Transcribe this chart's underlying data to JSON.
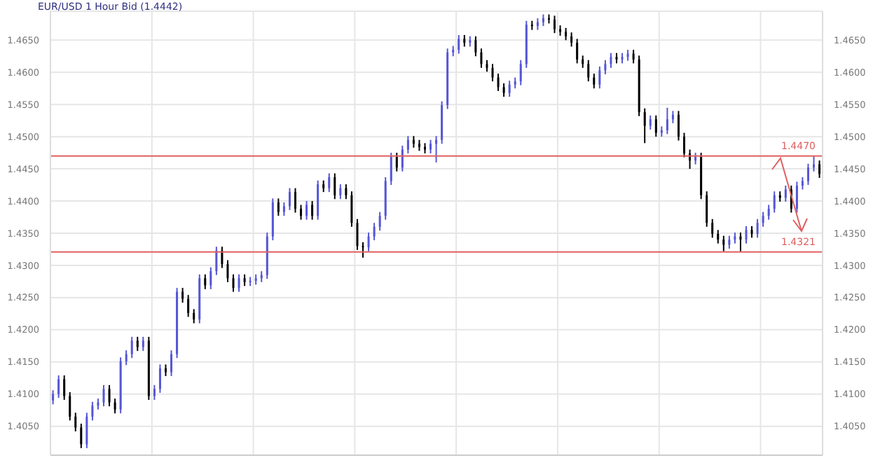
{
  "chart_data": {
    "type": "candlestick",
    "title": "EUR/USD 1 Hour Bid (1.4442)",
    "categories": [
      null,
      null,
      null,
      null,
      null,
      null,
      null,
      null,
      null,
      null,
      null,
      null,
      null,
      null,
      null,
      null,
      null,
      null,
      null,
      null,
      null,
      null,
      null,
      null,
      null,
      null,
      null,
      null,
      null,
      null,
      null,
      null,
      null,
      null,
      null,
      null,
      null,
      null,
      null,
      null,
      null,
      null,
      null,
      null,
      null,
      null,
      null,
      null,
      null,
      null,
      null,
      null,
      null,
      null,
      null,
      null,
      null,
      null,
      null,
      null,
      null,
      null,
      null,
      null,
      null,
      null,
      null,
      null,
      null,
      null,
      null,
      null,
      null,
      null,
      null,
      null,
      null,
      null,
      null,
      null,
      null,
      null,
      null,
      null,
      null,
      null,
      null,
      null,
      null,
      null,
      null,
      null,
      null,
      null,
      null,
      null,
      null,
      null,
      null,
      null,
      null,
      null,
      null,
      null,
      null,
      null,
      null,
      null,
      null,
      null,
      null,
      null,
      null,
      null,
      null,
      null,
      null,
      null,
      null,
      null,
      null,
      null,
      null,
      null,
      null,
      null,
      null,
      null,
      null,
      null,
      null,
      null,
      null,
      null,
      null,
      null,
      null
    ],
    "ohlc": [
      [
        1.409,
        1.4106,
        1.4084,
        1.41
      ],
      [
        1.41,
        1.4129,
        1.4094,
        1.4123
      ],
      [
        1.4123,
        1.4129,
        1.4091,
        1.4097
      ],
      [
        1.4097,
        1.4103,
        1.4059,
        1.4065
      ],
      [
        1.4065,
        1.4071,
        1.4042,
        1.4048
      ],
      [
        1.4048,
        1.4054,
        1.4016,
        1.4022
      ],
      [
        1.4022,
        1.4071,
        1.4016,
        1.4065
      ],
      [
        1.4065,
        1.4088,
        1.4059,
        1.4082
      ],
      [
        1.4082,
        1.4093,
        1.4076,
        1.4087
      ],
      [
        1.4087,
        1.4114,
        1.4081,
        1.4108
      ],
      [
        1.4108,
        1.4114,
        1.4081,
        1.4087
      ],
      [
        1.4087,
        1.4093,
        1.407,
        1.4076
      ],
      [
        1.4076,
        1.4157,
        1.407,
        1.4151
      ],
      [
        1.4151,
        1.4168,
        1.4145,
        1.4162
      ],
      [
        1.4162,
        1.4189,
        1.4156,
        1.4183
      ],
      [
        1.4183,
        1.4189,
        1.4167,
        1.4173
      ],
      [
        1.4173,
        1.4189,
        1.4167,
        1.4183
      ],
      [
        1.4183,
        1.4189,
        1.4091,
        1.4097
      ],
      [
        1.4097,
        1.4114,
        1.4091,
        1.4108
      ],
      [
        1.4108,
        1.4146,
        1.4102,
        1.414
      ],
      [
        1.414,
        1.4146,
        1.4128,
        1.4134
      ],
      [
        1.4134,
        1.4168,
        1.4128,
        1.4162
      ],
      [
        1.4162,
        1.4265,
        1.4156,
        1.4259
      ],
      [
        1.4259,
        1.4265,
        1.4242,
        1.4248
      ],
      [
        1.4248,
        1.4254,
        1.422,
        1.4226
      ],
      [
        1.4226,
        1.4232,
        1.421,
        1.4216
      ],
      [
        1.4216,
        1.4286,
        1.421,
        1.428
      ],
      [
        1.428,
        1.4286,
        1.4263,
        1.4269
      ],
      [
        1.4269,
        1.4297,
        1.4263,
        1.4291
      ],
      [
        1.4291,
        1.4329,
        1.4285,
        1.4323
      ],
      [
        1.4323,
        1.4329,
        1.4296,
        1.4302
      ],
      [
        1.4302,
        1.4308,
        1.4274,
        1.428
      ],
      [
        1.428,
        1.4286,
        1.4259,
        1.4265
      ],
      [
        1.4265,
        1.4286,
        1.4259,
        1.428
      ],
      [
        1.428,
        1.4286,
        1.4268,
        1.4274
      ],
      [
        1.4274,
        1.4282,
        1.4268,
        1.4276
      ],
      [
        1.4276,
        1.4286,
        1.427,
        1.428
      ],
      [
        1.428,
        1.4291,
        1.4274,
        1.4285
      ],
      [
        1.4285,
        1.4351,
        1.4279,
        1.4345
      ],
      [
        1.4345,
        1.4404,
        1.4339,
        1.4398
      ],
      [
        1.4398,
        1.4404,
        1.4377,
        1.4383
      ],
      [
        1.4383,
        1.4398,
        1.4377,
        1.4392
      ],
      [
        1.4392,
        1.442,
        1.4386,
        1.4414
      ],
      [
        1.4414,
        1.442,
        1.4382,
        1.4388
      ],
      [
        1.4388,
        1.4394,
        1.4371,
        1.4377
      ],
      [
        1.4377,
        1.44,
        1.4371,
        1.4394
      ],
      [
        1.4394,
        1.44,
        1.4371,
        1.4377
      ],
      [
        1.4377,
        1.4432,
        1.4371,
        1.4426
      ],
      [
        1.4426,
        1.4432,
        1.4414,
        1.442
      ],
      [
        1.442,
        1.4443,
        1.4414,
        1.4437
      ],
      [
        1.4437,
        1.4443,
        1.4403,
        1.4409
      ],
      [
        1.4409,
        1.4426,
        1.4403,
        1.442
      ],
      [
        1.442,
        1.4426,
        1.4403,
        1.4409
      ],
      [
        1.4409,
        1.4415,
        1.436,
        1.4366
      ],
      [
        1.4366,
        1.4372,
        1.4324,
        1.433
      ],
      [
        1.433,
        1.4336,
        1.4312,
        1.4328
      ],
      [
        1.4328,
        1.4351,
        1.4322,
        1.4345
      ],
      [
        1.4345,
        1.4366,
        1.4339,
        1.436
      ],
      [
        1.436,
        1.4383,
        1.4354,
        1.4377
      ],
      [
        1.4377,
        1.4437,
        1.4371,
        1.4431
      ],
      [
        1.4431,
        1.4475,
        1.4425,
        1.4469
      ],
      [
        1.4469,
        1.4475,
        1.4446,
        1.4452
      ],
      [
        1.4452,
        1.4486,
        1.4446,
        1.448
      ],
      [
        1.448,
        1.4501,
        1.4474,
        1.4495
      ],
      [
        1.4495,
        1.4501,
        1.4483,
        1.4489
      ],
      [
        1.4489,
        1.4495,
        1.4478,
        1.4484
      ],
      [
        1.4484,
        1.449,
        1.4474,
        1.448
      ],
      [
        1.448,
        1.4495,
        1.4474,
        1.4489
      ],
      [
        1.4489,
        1.4501,
        1.446,
        1.4495
      ],
      [
        1.4495,
        1.4555,
        1.4489,
        1.4549
      ],
      [
        1.4549,
        1.4637,
        1.4543,
        1.4631
      ],
      [
        1.4631,
        1.4641,
        1.4625,
        1.4635
      ],
      [
        1.4635,
        1.4658,
        1.4629,
        1.4652
      ],
      [
        1.4652,
        1.4658,
        1.464,
        1.4646
      ],
      [
        1.4646,
        1.4656,
        1.464,
        1.465
      ],
      [
        1.465,
        1.4656,
        1.4625,
        1.4631
      ],
      [
        1.4631,
        1.4637,
        1.4607,
        1.4613
      ],
      [
        1.4613,
        1.4619,
        1.4601,
        1.4607
      ],
      [
        1.4607,
        1.4613,
        1.4586,
        1.4592
      ],
      [
        1.4592,
        1.4598,
        1.4571,
        1.4577
      ],
      [
        1.4577,
        1.4583,
        1.4562,
        1.4568
      ],
      [
        1.4568,
        1.4587,
        1.4562,
        1.4581
      ],
      [
        1.4581,
        1.4592,
        1.4575,
        1.4586
      ],
      [
        1.4586,
        1.4619,
        1.458,
        1.4613
      ],
      [
        1.4613,
        1.468,
        1.4607,
        1.4674
      ],
      [
        1.4674,
        1.468,
        1.4666,
        1.4672
      ],
      [
        1.4672,
        1.4684,
        1.4666,
        1.4678
      ],
      [
        1.4678,
        1.469,
        1.4672,
        1.4684
      ],
      [
        1.4684,
        1.469,
        1.4676,
        1.4682
      ],
      [
        1.4682,
        1.4688,
        1.4661,
        1.4667
      ],
      [
        1.4667,
        1.4673,
        1.4657,
        1.4663
      ],
      [
        1.4663,
        1.4669,
        1.465,
        1.4656
      ],
      [
        1.4656,
        1.4662,
        1.464,
        1.4646
      ],
      [
        1.4646,
        1.4652,
        1.4614,
        1.462
      ],
      [
        1.462,
        1.4626,
        1.4607,
        1.4613
      ],
      [
        1.4613,
        1.4619,
        1.4586,
        1.4592
      ],
      [
        1.4592,
        1.4598,
        1.4575,
        1.4581
      ],
      [
        1.4581,
        1.4609,
        1.4575,
        1.4603
      ],
      [
        1.4603,
        1.4619,
        1.4597,
        1.4613
      ],
      [
        1.4613,
        1.463,
        1.4607,
        1.4624
      ],
      [
        1.4624,
        1.463,
        1.4614,
        1.462
      ],
      [
        1.462,
        1.463,
        1.4614,
        1.4624
      ],
      [
        1.4624,
        1.4635,
        1.4618,
        1.4629
      ],
      [
        1.4629,
        1.4635,
        1.4614,
        1.462
      ],
      [
        1.462,
        1.4626,
        1.4532,
        1.4538
      ],
      [
        1.4538,
        1.4544,
        1.449,
        1.4517
      ],
      [
        1.4517,
        1.4533,
        1.4511,
        1.4527
      ],
      [
        1.4527,
        1.4533,
        1.45,
        1.4506
      ],
      [
        1.4506,
        1.4516,
        1.45,
        1.451
      ],
      [
        1.451,
        1.4545,
        1.4504,
        1.4527
      ],
      [
        1.4527,
        1.454,
        1.4521,
        1.4534
      ],
      [
        1.4534,
        1.454,
        1.4494,
        1.45
      ],
      [
        1.45,
        1.4506,
        1.4468,
        1.4474
      ],
      [
        1.4474,
        1.448,
        1.445,
        1.4463
      ],
      [
        1.4463,
        1.4475,
        1.4457,
        1.4469
      ],
      [
        1.4469,
        1.4475,
        1.4403,
        1.4409
      ],
      [
        1.4409,
        1.4415,
        1.436,
        1.4366
      ],
      [
        1.4366,
        1.4372,
        1.4343,
        1.4349
      ],
      [
        1.4349,
        1.4355,
        1.4334,
        1.434
      ],
      [
        1.434,
        1.4346,
        1.4322,
        1.4332
      ],
      [
        1.4332,
        1.4346,
        1.4326,
        1.434
      ],
      [
        1.434,
        1.4351,
        1.4334,
        1.4345
      ],
      [
        1.4345,
        1.4351,
        1.4322,
        1.434
      ],
      [
        1.434,
        1.4361,
        1.4334,
        1.4355
      ],
      [
        1.4355,
        1.4361,
        1.4343,
        1.4349
      ],
      [
        1.4349,
        1.4372,
        1.4343,
        1.4366
      ],
      [
        1.4366,
        1.4383,
        1.436,
        1.4377
      ],
      [
        1.4377,
        1.4394,
        1.4371,
        1.4388
      ],
      [
        1.4388,
        1.4415,
        1.4382,
        1.4409
      ],
      [
        1.4409,
        1.4415,
        1.4399,
        1.4405
      ],
      [
        1.4405,
        1.4424,
        1.4399,
        1.4418
      ],
      [
        1.4418,
        1.4424,
        1.4382,
        1.4388
      ],
      [
        1.4388,
        1.443,
        1.4382,
        1.4424
      ],
      [
        1.4424,
        1.4437,
        1.4418,
        1.4431
      ],
      [
        1.4431,
        1.4458,
        1.4425,
        1.4452
      ],
      [
        1.4452,
        1.447,
        1.4446,
        1.4457
      ],
      [
        1.4457,
        1.4463,
        1.4436,
        1.4442
      ]
    ],
    "colors": [
      "#5656d6",
      "#5656d6",
      "#000000",
      "#000000",
      "#000000",
      "#000000",
      "#5656d6",
      "#5656d6",
      "#5656d6",
      "#5656d6",
      "#000000",
      "#000000",
      "#5656d6",
      "#5656d6",
      "#5656d6",
      "#000000",
      "#5656d6",
      "#000000",
      "#5656d6",
      "#5656d6",
      "#000000",
      "#5656d6",
      "#5656d6",
      "#000000",
      "#000000",
      "#000000",
      "#5656d6",
      "#000000",
      "#5656d6",
      "#5656d6",
      "#000000",
      "#000000",
      "#000000",
      "#5656d6",
      "#000000",
      "#5656d6",
      "#5656d6",
      "#5656d6",
      "#5656d6",
      "#5656d6",
      "#000000",
      "#5656d6",
      "#5656d6",
      "#000000",
      "#000000",
      "#5656d6",
      "#000000",
      "#5656d6",
      "#000000",
      "#5656d6",
      "#000000",
      "#5656d6",
      "#000000",
      "#000000",
      "#000000",
      "#000000",
      "#5656d6",
      "#5656d6",
      "#5656d6",
      "#5656d6",
      "#5656d6",
      "#000000",
      "#5656d6",
      "#5656d6",
      "#000000",
      "#000000",
      "#000000",
      "#5656d6",
      "#5656d6",
      "#5656d6",
      "#5656d6",
      "#5656d6",
      "#5656d6",
      "#000000",
      "#5656d6",
      "#000000",
      "#000000",
      "#000000",
      "#000000",
      "#000000",
      "#000000",
      "#5656d6",
      "#5656d6",
      "#5656d6",
      "#5656d6",
      "#000000",
      "#5656d6",
      "#5656d6",
      "#000000",
      "#000000",
      "#000000",
      "#000000",
      "#000000",
      "#000000",
      "#000000",
      "#000000",
      "#000000",
      "#5656d6",
      "#5656d6",
      "#5656d6",
      "#000000",
      "#5656d6",
      "#5656d6",
      "#000000",
      "#000000",
      "#000000",
      "#5656d6",
      "#000000",
      "#5656d6",
      "#5656d6",
      "#5656d6",
      "#000000",
      "#000000",
      "#000000",
      "#5656d6",
      "#000000",
      "#000000",
      "#000000",
      "#000000",
      "#000000",
      "#5656d6",
      "#5656d6",
      "#000000",
      "#5656d6",
      "#000000",
      "#5656d6",
      "#5656d6",
      "#5656d6",
      "#5656d6",
      "#000000",
      "#5656d6",
      "#000000",
      "#5656d6",
      "#5656d6",
      "#5656d6",
      "#5656d6",
      "#000000"
    ],
    "ylim": [
      1.4005,
      1.4695
    ],
    "yticks": [
      {
        "value": 1.405,
        "label": "1.4050"
      },
      {
        "value": 1.41,
        "label": "1.4100"
      },
      {
        "value": 1.415,
        "label": "1.4150"
      },
      {
        "value": 1.42,
        "label": "1.4200"
      },
      {
        "value": 1.425,
        "label": "1.4250"
      },
      {
        "value": 1.43,
        "label": "1.4300"
      },
      {
        "value": 1.435,
        "label": "1.4350"
      },
      {
        "value": 1.44,
        "label": "1.4400"
      },
      {
        "value": 1.445,
        "label": "1.4450"
      },
      {
        "value": 1.45,
        "label": "1.4500"
      },
      {
        "value": 1.455,
        "label": "1.4550"
      },
      {
        "value": 1.46,
        "label": "1.4600"
      },
      {
        "value": 1.465,
        "label": "1.4650"
      }
    ],
    "y2lim": [
      1.4005,
      1.4695
    ],
    "y2ticks": [
      {
        "value": 1.405,
        "label": "1.4050"
      },
      {
        "value": 1.41,
        "label": "1.4100"
      },
      {
        "value": 1.415,
        "label": "1.4150"
      },
      {
        "value": 1.42,
        "label": "1.4200"
      },
      {
        "value": 1.425,
        "label": "1.4250"
      },
      {
        "value": 1.43,
        "label": "1.4300"
      },
      {
        "value": 1.435,
        "label": "1.4350"
      },
      {
        "value": 1.44,
        "label": "1.4400"
      },
      {
        "value": 1.445,
        "label": "1.4450"
      },
      {
        "value": 1.45,
        "label": "1.4500"
      },
      {
        "value": 1.455,
        "label": "1.4550"
      },
      {
        "value": 1.46,
        "label": "1.4600"
      },
      {
        "value": 1.465,
        "label": "1.4650"
      }
    ],
    "tick_labels": "y",
    "grid": true,
    "ref_lines": [
      {
        "axis": "y",
        "value": 1.447,
        "label": "1.4470",
        "color": "#e06060"
      },
      {
        "axis": "y",
        "value": 1.4321,
        "label": "1.4321",
        "color": "#e06060"
      }
    ]
  }
}
